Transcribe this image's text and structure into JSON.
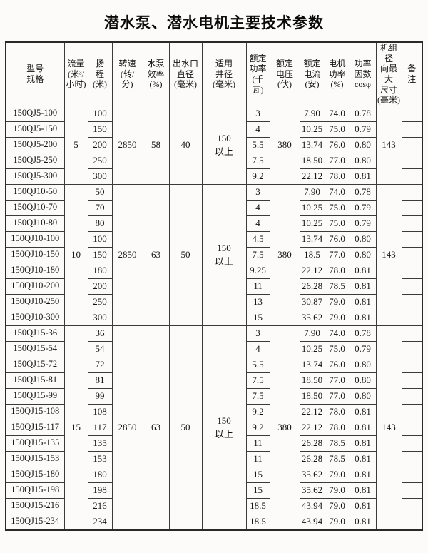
{
  "title": "潜水泵、潜水电机主要技术参数",
  "colors": {
    "background": "#fcfbf9",
    "border": "#3b3b3b",
    "outer_border": "#2a2a2a",
    "text": "#141414"
  },
  "table": {
    "headers": [
      {
        "id": "model",
        "lines": [
          "型号",
          "规格"
        ]
      },
      {
        "id": "flow",
        "lines": [
          "流量",
          "(米³/",
          "小时)"
        ]
      },
      {
        "id": "head",
        "lines": [
          "扬",
          "程",
          "(米)"
        ]
      },
      {
        "id": "speed",
        "lines": [
          "转速",
          "(转/",
          "分)"
        ]
      },
      {
        "id": "pump-efficiency",
        "lines": [
          "水泵",
          "效率",
          "(%)"
        ]
      },
      {
        "id": "outlet-diameter",
        "lines": [
          "出水口",
          "直径",
          "(毫米)"
        ]
      },
      {
        "id": "well-diameter",
        "lines": [
          "适用",
          "井径",
          "(毫米)"
        ]
      },
      {
        "id": "rated-power",
        "lines": [
          "额定",
          "功率",
          "(千",
          "瓦)"
        ]
      },
      {
        "id": "rated-voltage",
        "lines": [
          "额定",
          "电压",
          "(伏)"
        ]
      },
      {
        "id": "rated-current",
        "lines": [
          "额定",
          "电流",
          "(安)"
        ]
      },
      {
        "id": "motor-efficiency",
        "lines": [
          "电机",
          "功率",
          "(%)"
        ]
      },
      {
        "id": "power-factor",
        "lines": [
          "功率",
          "因数",
          "cosφ"
        ]
      },
      {
        "id": "max-radial-size",
        "lines": [
          "机组径",
          "向最大",
          "尺寸",
          "(毫米)"
        ]
      },
      {
        "id": "remark",
        "lines": [
          "备",
          "注"
        ]
      }
    ],
    "blocks": [
      {
        "flow": "5",
        "speed": "2850",
        "pump_efficiency": "58",
        "outlet_diameter": "40",
        "well_diameter_lines": [
          "150",
          "以上"
        ],
        "voltage": "380",
        "max_radial_size": "143",
        "rows": [
          {
            "model": "150QJ5-100",
            "head": "100",
            "power": "3",
            "current": "7.90",
            "motor_efficiency": "74.0",
            "cos_phi": "0.78",
            "remark": ""
          },
          {
            "model": "150QJ5-150",
            "head": "150",
            "power": "4",
            "current": "10.25",
            "motor_efficiency": "75.0",
            "cos_phi": "0.79",
            "remark": ""
          },
          {
            "model": "150QJ5-200",
            "head": "200",
            "power": "5.5",
            "current": "13.74",
            "motor_efficiency": "76.0",
            "cos_phi": "0.80",
            "remark": ""
          },
          {
            "model": "150QJ5-250",
            "head": "250",
            "power": "7.5",
            "current": "18.50",
            "motor_efficiency": "77.0",
            "cos_phi": "0.80",
            "remark": ""
          },
          {
            "model": "150QJ5-300",
            "head": "300",
            "power": "9.2",
            "current": "22.12",
            "motor_efficiency": "78.0",
            "cos_phi": "0.81",
            "remark": ""
          }
        ]
      },
      {
        "flow": "10",
        "speed": "2850",
        "pump_efficiency": "63",
        "outlet_diameter": "50",
        "well_diameter_lines": [
          "150",
          "以上"
        ],
        "voltage": "380",
        "max_radial_size": "143",
        "rows": [
          {
            "model": "150QJ10-50",
            "head": "50",
            "power": "3",
            "current": "7.90",
            "motor_efficiency": "74.0",
            "cos_phi": "0.78",
            "remark": ""
          },
          {
            "model": "150QJ10-70",
            "head": "70",
            "power": "4",
            "current": "10.25",
            "motor_efficiency": "75.0",
            "cos_phi": "0.79",
            "remark": ""
          },
          {
            "model": "150QJ10-80",
            "head": "80",
            "power": "4",
            "current": "10.25",
            "motor_efficiency": "75.0",
            "cos_phi": "0.79",
            "remark": ""
          },
          {
            "model": "150QJ10-100",
            "head": "100",
            "power": "4.5",
            "current": "13.74",
            "motor_efficiency": "76.0",
            "cos_phi": "0.80",
            "remark": ""
          },
          {
            "model": "150QJ10-150",
            "head": "150",
            "power": "7.5",
            "current": "18.5",
            "motor_efficiency": "77.0",
            "cos_phi": "0.80",
            "remark": ""
          },
          {
            "model": "150QJ10-180",
            "head": "180",
            "power": "9.25",
            "current": "22.12",
            "motor_efficiency": "78.0",
            "cos_phi": "0.81",
            "remark": ""
          },
          {
            "model": "150QJ10-200",
            "head": "200",
            "power": "11",
            "current": "26.28",
            "motor_efficiency": "78.5",
            "cos_phi": "0.81",
            "remark": ""
          },
          {
            "model": "150QJ10-250",
            "head": "250",
            "power": "13",
            "current": "30.87",
            "motor_efficiency": "79.0",
            "cos_phi": "0.81",
            "remark": ""
          },
          {
            "model": "150QJ10-300",
            "head": "300",
            "power": "15",
            "current": "35.62",
            "motor_efficiency": "79.0",
            "cos_phi": "0.81",
            "remark": ""
          }
        ]
      },
      {
        "flow": "15",
        "speed": "2850",
        "pump_efficiency": "63",
        "outlet_diameter": "50",
        "well_diameter_lines": [
          "150",
          "以上"
        ],
        "voltage": "380",
        "max_radial_size": "143",
        "rows": [
          {
            "model": "150QJ15-36",
            "head": "36",
            "power": "3",
            "current": "7.90",
            "motor_efficiency": "74.0",
            "cos_phi": "0.78",
            "remark": ""
          },
          {
            "model": "150QJ15-54",
            "head": "54",
            "power": "4",
            "current": "10.25",
            "motor_efficiency": "75.0",
            "cos_phi": "0.79",
            "remark": ""
          },
          {
            "model": "150QJ15-72",
            "head": "72",
            "power": "5.5",
            "current": "13.74",
            "motor_efficiency": "76.0",
            "cos_phi": "0.80",
            "remark": ""
          },
          {
            "model": "150QJ15-81",
            "head": "81",
            "power": "7.5",
            "current": "18.50",
            "motor_efficiency": "77.0",
            "cos_phi": "0.80",
            "remark": ""
          },
          {
            "model": "150QJ15-99",
            "head": "99",
            "power": "7.5",
            "current": "18.50",
            "motor_efficiency": "77.0",
            "cos_phi": "0.80",
            "remark": ""
          },
          {
            "model": "150QJ15-108",
            "head": "108",
            "power": "9.2",
            "current": "22.12",
            "motor_efficiency": "78.0",
            "cos_phi": "0.81",
            "remark": ""
          },
          {
            "model": "150QJ15-117",
            "head": "117",
            "power": "9.2",
            "current": "22.12",
            "motor_efficiency": "78.0",
            "cos_phi": "0.81",
            "remark": ""
          },
          {
            "model": "150QJ15-135",
            "head": "135",
            "power": "11",
            "current": "26.28",
            "motor_efficiency": "78.5",
            "cos_phi": "0.81",
            "remark": ""
          },
          {
            "model": "150QJ15-153",
            "head": "153",
            "power": "11",
            "current": "26.28",
            "motor_efficiency": "78.5",
            "cos_phi": "0.81",
            "remark": ""
          },
          {
            "model": "150QJ15-180",
            "head": "180",
            "power": "15",
            "current": "35.62",
            "motor_efficiency": "79.0",
            "cos_phi": "0.81",
            "remark": ""
          },
          {
            "model": "150QJ15-198",
            "head": "198",
            "power": "15",
            "current": "35.62",
            "motor_efficiency": "79.0",
            "cos_phi": "0.81",
            "remark": ""
          },
          {
            "model": "150QJ15-216",
            "head": "216",
            "power": "18.5",
            "current": "43.94",
            "motor_efficiency": "79.0",
            "cos_phi": "0.81",
            "remark": ""
          },
          {
            "model": "150QJ15-234",
            "head": "234",
            "power": "18.5",
            "current": "43.94",
            "motor_efficiency": "79.0",
            "cos_phi": "0.81",
            "remark": ""
          }
        ]
      }
    ]
  }
}
